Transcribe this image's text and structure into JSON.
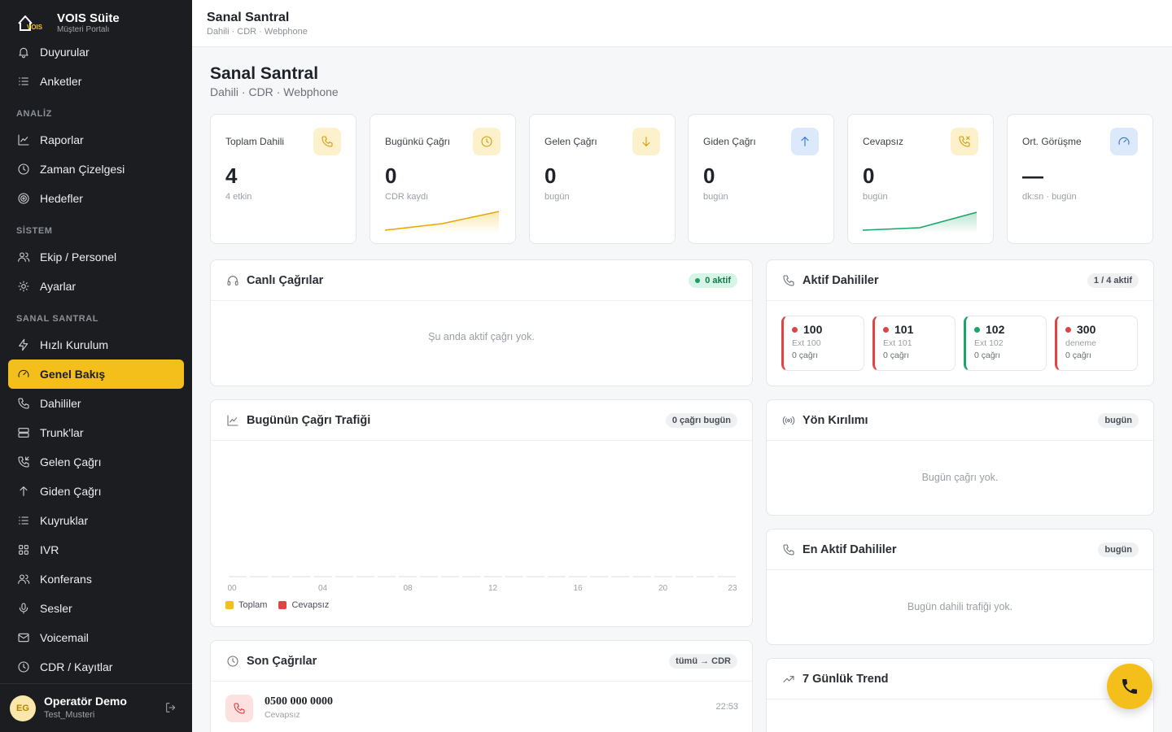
{
  "brand": {
    "title": "VOIS Süite",
    "subtitle": "Müşteri Portalı"
  },
  "sidebar": {
    "items_top": [
      {
        "label": "Duyurular",
        "icon": "bell-icon"
      },
      {
        "label": "Anketler",
        "icon": "list-icon"
      }
    ],
    "sections": {
      "analiz": "ANALİZ",
      "sistem": "SİSTEM",
      "santral": "SANAL SANTRAL"
    },
    "analiz_items": [
      {
        "label": "Raporlar",
        "icon": "chart-line-icon"
      },
      {
        "label": "Zaman Çizelgesi",
        "icon": "clock-icon"
      },
      {
        "label": "Hedefler",
        "icon": "target-icon"
      }
    ],
    "sistem_items": [
      {
        "label": "Ekip / Personel",
        "icon": "users-icon"
      },
      {
        "label": "Ayarlar",
        "icon": "sun-gear-icon"
      }
    ],
    "santral_items": [
      {
        "label": "Hızlı Kurulum",
        "icon": "bolt-icon"
      },
      {
        "label": "Genel Bakış",
        "icon": "gauge-icon",
        "active": true
      },
      {
        "label": "Dahililer",
        "icon": "phone-icon"
      },
      {
        "label": "Trunk'lar",
        "icon": "server-icon"
      },
      {
        "label": "Gelen Çağrı",
        "icon": "phone-incoming-icon"
      },
      {
        "label": "Giden Çağrı",
        "icon": "arrow-up-icon"
      },
      {
        "label": "Kuyruklar",
        "icon": "list-icon"
      },
      {
        "label": "IVR",
        "icon": "grid-icon"
      },
      {
        "label": "Konferans",
        "icon": "users-icon"
      },
      {
        "label": "Sesler",
        "icon": "mic-icon"
      },
      {
        "label": "Voicemail",
        "icon": "mail-icon"
      },
      {
        "label": "CDR / Kayıtlar",
        "icon": "clock-icon"
      }
    ]
  },
  "user": {
    "initials": "EG",
    "name": "Operatör Demo",
    "org": "Test_Musteri"
  },
  "topbar": {
    "title": "Sanal Santral",
    "subtitle": "Dahili · CDR · Webphone"
  },
  "page": {
    "title": "Sanal Santral",
    "subtitle": "Dahili · CDR · Webphone"
  },
  "stats": [
    {
      "label": "Toplam Dahili",
      "value": "4",
      "note": "4 etkin",
      "icon": "phone-icon",
      "bg": "#fdf1cc",
      "stroke": "#d69a00"
    },
    {
      "label": "Bugünkü Çağrı",
      "value": "0",
      "note": "CDR kaydı",
      "icon": "clock-icon",
      "bg": "#fdf1cc",
      "stroke": "#d69a00",
      "spark": "#e5a900"
    },
    {
      "label": "Gelen Çağrı",
      "value": "0",
      "note": "bugün",
      "icon": "arrow-down-icon",
      "bg": "#fdf1cc",
      "stroke": "#d69a00"
    },
    {
      "label": "Giden Çağrı",
      "value": "0",
      "note": "bugün",
      "icon": "arrow-up-icon",
      "bg": "#dbe9fb",
      "stroke": "#2f6fd1"
    },
    {
      "label": "Cevapsız",
      "value": "0",
      "note": "bugün",
      "icon": "phone-missed-icon",
      "bg": "#fdf1cc",
      "stroke": "#d69a00",
      "spark": "#1aa56a"
    },
    {
      "label": "Ort. Görüşme",
      "value": "—",
      "note": "dk:sn · bugün",
      "icon": "gauge-icon",
      "bg": "#dbe9fb",
      "stroke": "#2f6fd1"
    }
  ],
  "live_calls": {
    "title": "Canlı Çağrılar",
    "badge": "0 aktif",
    "empty": "Şu anda aktif çağrı yok."
  },
  "active_exts": {
    "title": "Aktif Dahililer",
    "badge": "1 / 4 aktif",
    "items": [
      {
        "num": "100",
        "name": "Ext 100",
        "calls": "0 çağrı",
        "status": "offline",
        "color": "#e04545"
      },
      {
        "num": "101",
        "name": "Ext 101",
        "calls": "0 çağrı",
        "status": "offline",
        "color": "#e04545"
      },
      {
        "num": "102",
        "name": "Ext 102",
        "calls": "0 çağrı",
        "status": "online",
        "color": "#1aa56a"
      },
      {
        "num": "300",
        "name": "deneme",
        "calls": "0 çağrı",
        "status": "offline",
        "color": "#e04545"
      }
    ]
  },
  "traffic": {
    "title": "Bugünün Çağrı Trafiği",
    "badge": "0 çağrı bugün",
    "legend": [
      {
        "label": "Toplam",
        "color": "#f5bf1b"
      },
      {
        "label": "Cevapsız",
        "color": "#e04545"
      }
    ]
  },
  "chart_data": {
    "type": "bar",
    "categories": [
      "00",
      "01",
      "02",
      "03",
      "04",
      "05",
      "06",
      "07",
      "08",
      "09",
      "10",
      "11",
      "12",
      "13",
      "14",
      "15",
      "16",
      "17",
      "18",
      "19",
      "20",
      "21",
      "22",
      "23"
    ],
    "tick_labels": [
      "00",
      "04",
      "08",
      "12",
      "16",
      "20",
      "23"
    ],
    "series": [
      {
        "name": "Toplam",
        "values": [
          0,
          0,
          0,
          0,
          0,
          0,
          0,
          0,
          0,
          0,
          0,
          0,
          0,
          0,
          0,
          0,
          0,
          0,
          0,
          0,
          0,
          0,
          0,
          0
        ]
      },
      {
        "name": "Cevapsız",
        "values": [
          0,
          0,
          0,
          0,
          0,
          0,
          0,
          0,
          0,
          0,
          0,
          0,
          0,
          0,
          0,
          0,
          0,
          0,
          0,
          0,
          0,
          0,
          0,
          0
        ]
      }
    ]
  },
  "direction": {
    "title": "Yön Kırılımı",
    "badge": "bugün",
    "empty": "Bugün çağrı yok."
  },
  "top_exts": {
    "title": "En Aktif Dahililer",
    "badge": "bugün",
    "empty": "Bugün dahili trafiği yok."
  },
  "recent": {
    "title": "Son Çağrılar",
    "badge": "tümü → CDR",
    "rows": [
      {
        "number": "0500 000 0000",
        "status": "Cevapsız",
        "time": "22:53"
      }
    ]
  },
  "trend": {
    "title": "7 Günlük Trend"
  }
}
